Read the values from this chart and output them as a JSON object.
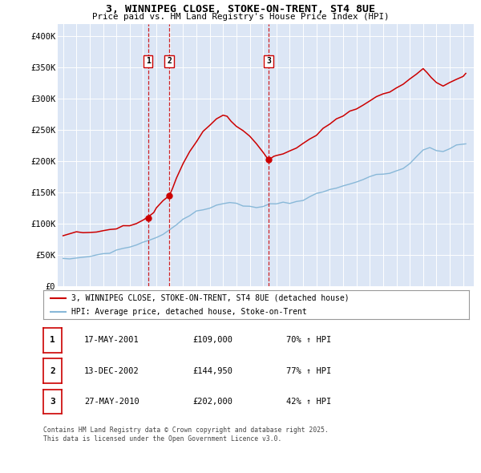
{
  "title": "3, WINNIPEG CLOSE, STOKE-ON-TRENT, ST4 8UE",
  "subtitle": "Price paid vs. HM Land Registry's House Price Index (HPI)",
  "bg_color": "#dce6f5",
  "red_color": "#cc0000",
  "blue_color": "#88b8d8",
  "ylim": [
    0,
    420000
  ],
  "yticks": [
    0,
    50000,
    100000,
    150000,
    200000,
    250000,
    300000,
    350000,
    400000
  ],
  "ytick_labels": [
    "£0",
    "£50K",
    "£100K",
    "£150K",
    "£200K",
    "£250K",
    "£300K",
    "£350K",
    "£400K"
  ],
  "sale_dates": [
    "2001-05-17",
    "2002-12-13",
    "2010-05-27"
  ],
  "sale_prices": [
    109000,
    144950,
    202000
  ],
  "sale_labels": [
    "1",
    "2",
    "3"
  ],
  "sale_xvals": [
    2001.38,
    2002.96,
    2010.41
  ],
  "legend_red": "3, WINNIPEG CLOSE, STOKE-ON-TRENT, ST4 8UE (detached house)",
  "legend_blue": "HPI: Average price, detached house, Stoke-on-Trent",
  "table_rows": [
    [
      "1",
      "17-MAY-2001",
      "£109,000",
      "70% ↑ HPI"
    ],
    [
      "2",
      "13-DEC-2002",
      "£144,950",
      "77% ↑ HPI"
    ],
    [
      "3",
      "27-MAY-2010",
      "£202,000",
      "42% ↑ HPI"
    ]
  ],
  "footer": "Contains HM Land Registry data © Crown copyright and database right 2025.\nThis data is licensed under the Open Government Licence v3.0.",
  "hpi_x": [
    1995.0,
    1995.5,
    1996.0,
    1996.5,
    1997.0,
    1997.5,
    1998.0,
    1998.5,
    1999.0,
    1999.5,
    2000.0,
    2000.5,
    2001.0,
    2001.5,
    2002.0,
    2002.5,
    2003.0,
    2003.5,
    2004.0,
    2004.5,
    2005.0,
    2005.5,
    2006.0,
    2006.5,
    2007.0,
    2007.5,
    2008.0,
    2008.5,
    2009.0,
    2009.5,
    2010.0,
    2010.5,
    2011.0,
    2011.5,
    2012.0,
    2012.5,
    2013.0,
    2013.5,
    2014.0,
    2014.5,
    2015.0,
    2015.5,
    2016.0,
    2016.5,
    2017.0,
    2017.5,
    2018.0,
    2018.5,
    2019.0,
    2019.5,
    2020.0,
    2020.5,
    2021.0,
    2021.5,
    2022.0,
    2022.5,
    2023.0,
    2023.5,
    2024.0,
    2024.5,
    2025.2
  ],
  "hpi_y": [
    43000,
    44000,
    45000,
    46000,
    48000,
    50000,
    52000,
    54000,
    57000,
    60000,
    63000,
    66000,
    70000,
    74000,
    78000,
    84000,
    90000,
    98000,
    107000,
    114000,
    119000,
    122000,
    125000,
    128000,
    132000,
    135000,
    133000,
    130000,
    127000,
    126000,
    128000,
    131000,
    133000,
    134000,
    134000,
    136000,
    138000,
    142000,
    147000,
    151000,
    154000,
    157000,
    160000,
    164000,
    168000,
    172000,
    175000,
    177000,
    179000,
    181000,
    183000,
    188000,
    196000,
    207000,
    218000,
    222000,
    218000,
    215000,
    220000,
    225000,
    228000
  ],
  "red_x": [
    1995.0,
    1995.5,
    1996.0,
    1996.5,
    1997.0,
    1997.5,
    1998.0,
    1998.5,
    1999.0,
    1999.5,
    2000.0,
    2000.5,
    2001.0,
    2001.38,
    2001.8,
    2002.0,
    2002.5,
    2002.96,
    2003.2,
    2003.5,
    2004.0,
    2004.5,
    2005.0,
    2005.5,
    2006.0,
    2006.5,
    2007.0,
    2007.3,
    2007.6,
    2008.0,
    2008.5,
    2009.0,
    2009.5,
    2010.0,
    2010.41,
    2010.8,
    2011.0,
    2011.5,
    2012.0,
    2012.5,
    2013.0,
    2013.5,
    2014.0,
    2014.5,
    2015.0,
    2015.5,
    2016.0,
    2016.5,
    2017.0,
    2017.5,
    2018.0,
    2018.5,
    2019.0,
    2019.5,
    2020.0,
    2020.5,
    2021.0,
    2021.5,
    2022.0,
    2022.3,
    2022.6,
    2023.0,
    2023.5,
    2024.0,
    2024.5,
    2025.0,
    2025.2
  ],
  "red_y": [
    83000,
    84000,
    85000,
    86000,
    87000,
    88000,
    90000,
    91000,
    93000,
    95000,
    97000,
    100000,
    104000,
    109000,
    118000,
    125000,
    136000,
    144950,
    158000,
    172000,
    195000,
    215000,
    232000,
    248000,
    258000,
    268000,
    272000,
    270000,
    263000,
    255000,
    248000,
    240000,
    228000,
    215000,
    202000,
    205000,
    208000,
    212000,
    217000,
    222000,
    228000,
    235000,
    243000,
    252000,
    260000,
    266000,
    272000,
    278000,
    284000,
    290000,
    296000,
    302000,
    307000,
    312000,
    317000,
    323000,
    332000,
    340000,
    346000,
    342000,
    335000,
    325000,
    320000,
    326000,
    330000,
    335000,
    340000
  ]
}
